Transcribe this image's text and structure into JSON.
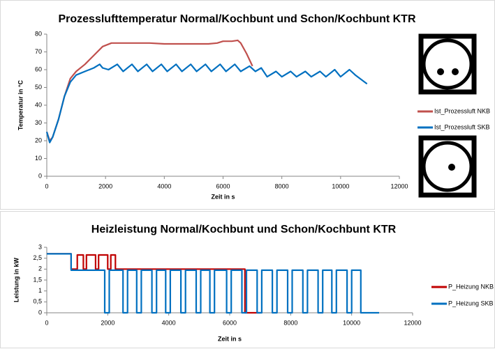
{
  "chart_data": [
    {
      "type": "line",
      "title": "Prozesslufttemperatur Normal/Kochbunt und Schon/Kochbunt KTR",
      "xlabel": "Zeit in s",
      "ylabel": "Temperatur in °C",
      "xlim": [
        0,
        12000
      ],
      "xticks": [
        0,
        2000,
        4000,
        6000,
        8000,
        10000,
        12000
      ],
      "ylim": [
        0,
        80
      ],
      "yticks": [
        0,
        10,
        20,
        30,
        40,
        50,
        60,
        70,
        80
      ],
      "legend": "right",
      "series": [
        {
          "name": "Ist_Prozessluft NKB",
          "color": "#c0504d",
          "x": [
            0,
            100,
            200,
            400,
            600,
            800,
            1000,
            1300,
            1600,
            1900,
            2200,
            2500,
            3000,
            3500,
            4000,
            4500,
            5000,
            5500,
            5800,
            6000,
            6300,
            6500,
            6600,
            6800,
            7000
          ],
          "values": [
            25,
            20,
            22,
            32,
            45,
            55,
            59,
            63,
            68,
            73,
            75,
            75,
            75,
            75,
            74.5,
            74.5,
            74.5,
            74.5,
            75,
            76,
            76,
            76.5,
            75,
            69,
            62
          ]
        },
        {
          "name": "Ist_Prozessluft SKB",
          "color": "#0070c0",
          "x": [
            0,
            100,
            200,
            400,
            600,
            800,
            1000,
            1300,
            1600,
            1800,
            1900,
            2100,
            2400,
            2600,
            2900,
            3100,
            3400,
            3600,
            3900,
            4100,
            4400,
            4600,
            4900,
            5100,
            5400,
            5600,
            5900,
            6100,
            6400,
            6600,
            6900,
            7100,
            7300,
            7500,
            7800,
            8000,
            8300,
            8500,
            8800,
            9000,
            9300,
            9500,
            9800,
            10000,
            10300,
            10500,
            10900
          ],
          "values": [
            25,
            19,
            22,
            32,
            45,
            53,
            57,
            59,
            61,
            63,
            61,
            60,
            63,
            59,
            63,
            59,
            63,
            59,
            63,
            59,
            63,
            59,
            63,
            59,
            63,
            59,
            63,
            59,
            63,
            59,
            62,
            59,
            61,
            56,
            59,
            56,
            59,
            56,
            59,
            56,
            59,
            56,
            60,
            56,
            60,
            57,
            52
          ]
        }
      ]
    },
    {
      "type": "line",
      "title": "Heizleistung Normal/Kochbunt und Schon/Kochbunt KTR",
      "xlabel": "Zeit in s",
      "ylabel": "Leistung in kW",
      "xlim": [
        0,
        12000
      ],
      "xticks": [
        0,
        2000,
        4000,
        6000,
        8000,
        10000,
        12000
      ],
      "ylim": [
        0,
        3
      ],
      "yticks": [
        0,
        {
          "value": 0.5,
          "label": "0,5"
        },
        1,
        {
          "value": 1.5,
          "label": "1,5"
        },
        2,
        {
          "value": 2.5,
          "label": "2,5"
        },
        3
      ],
      "legend": "right",
      "series": [
        {
          "name": "P_Heizung NKB",
          "color": "#c00000",
          "x": [
            0,
            800,
            800,
            1000,
            1000,
            1200,
            1200,
            1300,
            1300,
            1600,
            1600,
            1700,
            1700,
            2000,
            2000,
            2100,
            2100,
            2250,
            2250,
            6500,
            6500,
            7000
          ],
          "values": [
            2.7,
            2.7,
            2.0,
            2.0,
            2.65,
            2.65,
            2.0,
            2.0,
            2.65,
            2.65,
            2.0,
            2.0,
            2.65,
            2.65,
            2.0,
            2.0,
            2.65,
            2.65,
            2.0,
            2.0,
            0,
            0
          ]
        },
        {
          "name": "P_Heizung SKB",
          "color": "#0070c0",
          "x": [
            0,
            800,
            800,
            1900,
            1900,
            2050,
            2050,
            2500,
            2500,
            2650,
            2650,
            2950,
            2950,
            3100,
            3100,
            3450,
            3450,
            3600,
            3600,
            3900,
            3900,
            4050,
            4050,
            4400,
            4400,
            4550,
            4550,
            4900,
            4900,
            5050,
            5050,
            5350,
            5350,
            5500,
            5500,
            5900,
            5900,
            6050,
            6050,
            6400,
            6400,
            6550,
            6550,
            6900,
            6900,
            7050,
            7050,
            7400,
            7400,
            7550,
            7550,
            7900,
            7900,
            8050,
            8050,
            8400,
            8400,
            8550,
            8550,
            8900,
            8900,
            9050,
            9050,
            9350,
            9350,
            9500,
            9500,
            9850,
            9850,
            10000,
            10000,
            10300,
            10300,
            10900
          ],
          "values": [
            2.7,
            2.7,
            1.95,
            1.95,
            0,
            0,
            1.95,
            1.95,
            0,
            0,
            1.95,
            1.95,
            0,
            0,
            1.95,
            1.95,
            0,
            0,
            1.95,
            1.95,
            0,
            0,
            1.95,
            1.95,
            0,
            0,
            1.95,
            1.95,
            0,
            0,
            1.95,
            1.95,
            0,
            0,
            1.95,
            1.95,
            0,
            0,
            1.95,
            1.95,
            0,
            0,
            1.95,
            1.95,
            0,
            0,
            1.95,
            1.95,
            0,
            0,
            1.95,
            1.95,
            0,
            0,
            1.95,
            1.95,
            0,
            0,
            1.95,
            1.95,
            0,
            0,
            1.95,
            1.95,
            0,
            0,
            1.95,
            1.95,
            0,
            0,
            1.95,
            1.95,
            0,
            0
          ]
        }
      ]
    }
  ]
}
